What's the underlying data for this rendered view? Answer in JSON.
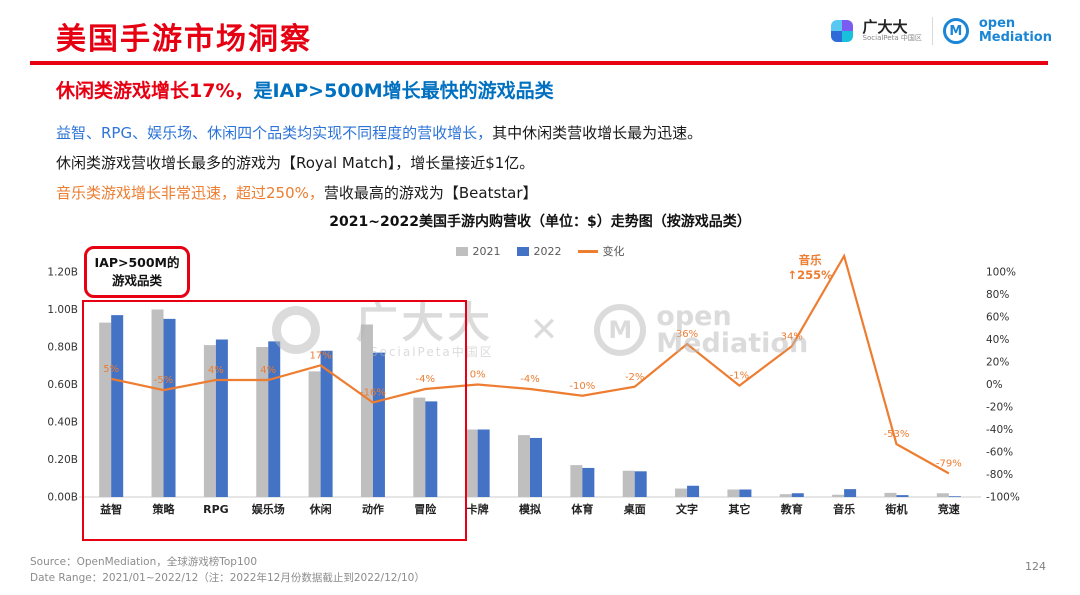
{
  "header": {
    "title": "美国手游市场洞察",
    "logo_left": {
      "name": "广大大",
      "sub": "SocialPeta 中国区"
    },
    "logo_right": {
      "monogram": "M",
      "line1": "open",
      "line2": "Mediation"
    }
  },
  "headline": {
    "red": "休闲类游戏增长17%，",
    "blue": "是IAP>500M增长最快的游戏品类"
  },
  "paragraphs": [
    {
      "segments": [
        {
          "text": "益智、RPG、娱乐场、休闲四个品类均实现不同程度的营收增长，",
          "color": "#2e74d8"
        },
        {
          "text": "其中休闲类营收增长最为迅速。",
          "color": ""
        }
      ]
    },
    {
      "segments": [
        {
          "text": "休闲类游戏营收增长最多的游戏为【Royal Match】，增长量接近$1亿。",
          "color": ""
        }
      ]
    },
    {
      "segments": [
        {
          "text": "音乐类游戏增长非常迅速，超过250%，",
          "color": "#ed7d31"
        },
        {
          "text": "营收最高的游戏为【Beatstar】",
          "color": ""
        }
      ]
    }
  ],
  "chart_data": {
    "type": "bar+line",
    "title": "2021~2022美国手游内购营收（单位：$）走势图（按游戏品类）",
    "legend": [
      "2021",
      "2022",
      "变化"
    ],
    "categories": [
      "益智",
      "策略",
      "RPG",
      "娱乐场",
      "休闲",
      "动作",
      "冒险",
      "卡牌",
      "模拟",
      "体育",
      "桌面",
      "文字",
      "其它",
      "教育",
      "音乐",
      "街机",
      "竞速"
    ],
    "series": [
      {
        "name": "2021",
        "color": "#bfbfbf",
        "values": [
          0.93,
          1.0,
          0.81,
          0.8,
          0.67,
          0.92,
          0.53,
          0.36,
          0.33,
          0.17,
          0.14,
          0.045,
          0.04,
          0.015,
          0.012,
          0.022,
          0.02
        ]
      },
      {
        "name": "2022",
        "color": "#4472c4",
        "values": [
          0.97,
          0.95,
          0.84,
          0.83,
          0.78,
          0.77,
          0.51,
          0.36,
          0.315,
          0.155,
          0.137,
          0.06,
          0.04,
          0.02,
          0.042,
          0.01,
          0.004
        ]
      }
    ],
    "change_line": {
      "name": "变化",
      "color": "#ed7d31",
      "values_pct": [
        5,
        -5,
        4,
        4,
        17,
        -16,
        -4,
        0,
        -4,
        -10,
        -2,
        36,
        -1,
        34,
        255,
        -53,
        -79
      ],
      "labels": [
        "5%",
        "-5%",
        "4%",
        "4%",
        "17%",
        "-16%",
        "-4%",
        "0%",
        "-4%",
        "-10%",
        "-2%",
        "36%",
        "-1%",
        "34%",
        "↑255%",
        "-53%",
        "-79%"
      ]
    },
    "left_axis": {
      "max": 1.2,
      "min": 0,
      "ticks": [
        "1.20B",
        "1.00B",
        "0.80B",
        "0.60B",
        "0.40B",
        "0.20B",
        "0.00B"
      ]
    },
    "right_axis": {
      "max": 100,
      "min": -100,
      "ticks": [
        "100%",
        "80%",
        "60%",
        "40%",
        "20%",
        "0%",
        "-20%",
        "-40%",
        "-60%",
        "-80%",
        "-100%"
      ]
    },
    "annotation_box": {
      "line1": "IAP>500M的",
      "line2": "游戏品类"
    },
    "music_callout": {
      "line1": "音乐",
      "line2": "↑255%"
    }
  },
  "watermark": {
    "brand": "广大大",
    "brand_sub": "SocialPeta中国区",
    "x": "✕",
    "monogram": "M",
    "om_line1": "open",
    "om_line2": "Mediation"
  },
  "footer": {
    "source": "Source：OpenMediation，全球游戏榜Top100",
    "range": "Date Range：2021/01~2022/12（注：2022年12月份数据截止到2022/12/10）",
    "page": "124"
  }
}
